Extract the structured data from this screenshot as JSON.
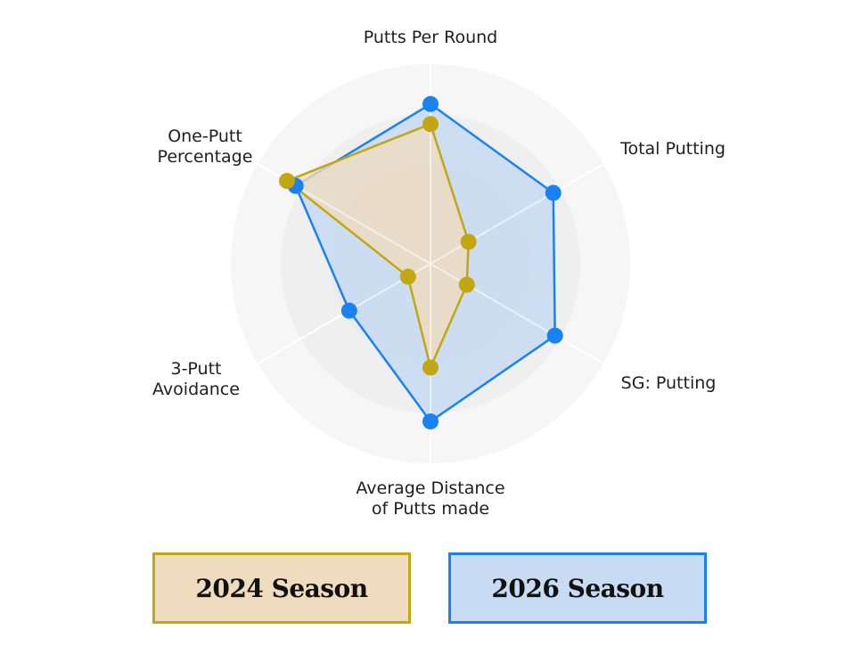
{
  "chart_data": {
    "type": "radar",
    "title": "",
    "axes": [
      "Putts Per Round",
      "Total Putting",
      "SG: Putting",
      "Average Distance of Putts made",
      "3-Putt Avoidance",
      "One-Putt Percentage"
    ],
    "range": [
      0,
      100
    ],
    "grid_rings": 4,
    "series": [
      {
        "name": "2024 Season",
        "color": "#c2a612",
        "fill": "#efdcbf",
        "values": [
          70,
          22,
          21,
          52,
          13,
          83
        ]
      },
      {
        "name": "2026 Season",
        "color": "#1a82f0",
        "fill": "#c7dbf2",
        "values": [
          80,
          71,
          72,
          79,
          47,
          78
        ]
      }
    ],
    "legend_position": "bottom"
  },
  "labels": {
    "putts_per_round": "Putts Per Round",
    "total_putting": "Total Putting",
    "sg_putting": "SG: Putting",
    "avg_distance": "Average Distance\nof Putts made",
    "three_putt": "3-Putt\nAvoidance",
    "one_putt": "One-Putt\nPercentage"
  },
  "legend": {
    "season_2024": "2024 Season",
    "season_2026": "2026 Season"
  }
}
